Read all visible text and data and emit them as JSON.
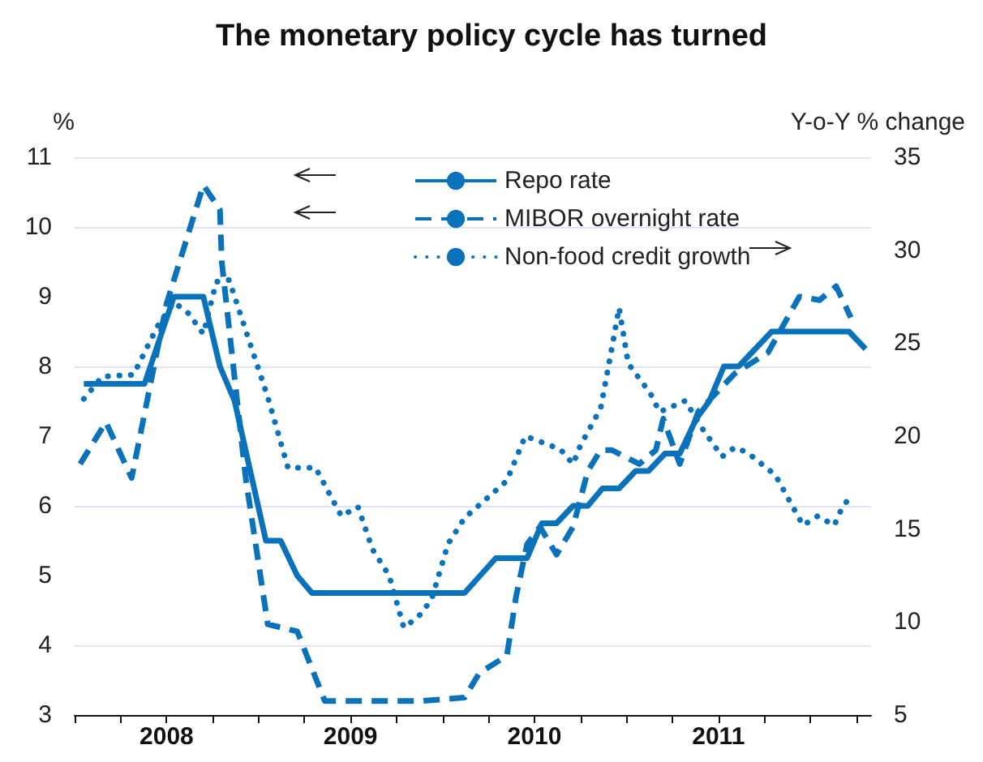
{
  "chart_data": {
    "type": "line",
    "title": "The monetary policy cycle has turned",
    "ylabel": "%",
    "y2label": "Y-o-Y % change",
    "xlim": [
      2008,
      2012.33
    ],
    "xticks": [
      {
        "value": 2008,
        "label": null
      },
      {
        "value": 2008.25,
        "label": null
      },
      {
        "value": 2008.5,
        "label": "2008"
      },
      {
        "value": 2008.75,
        "label": null
      },
      {
        "value": 2009,
        "label": null
      },
      {
        "value": 2009.25,
        "label": null
      },
      {
        "value": 2009.5,
        "label": "2009"
      },
      {
        "value": 2009.75,
        "label": null
      },
      {
        "value": 2010,
        "label": null
      },
      {
        "value": 2010.25,
        "label": null
      },
      {
        "value": 2010.5,
        "label": "2010"
      },
      {
        "value": 2010.75,
        "label": null
      },
      {
        "value": 2011,
        "label": null
      },
      {
        "value": 2011.25,
        "label": null
      },
      {
        "value": 2011.5,
        "label": "2011"
      },
      {
        "value": 2011.75,
        "label": null
      },
      {
        "value": 2012,
        "label": null
      },
      {
        "value": 2012.25,
        "label": null
      }
    ],
    "ylim": [
      3,
      11
    ],
    "yticks": [
      3,
      4,
      5,
      6,
      7,
      8,
      9,
      10,
      11
    ],
    "y2lim": [
      5,
      35
    ],
    "y2ticks": [
      5,
      10,
      15,
      20,
      25,
      30,
      35
    ],
    "grid": "y",
    "legend": "top",
    "marker": "none",
    "series": [
      {
        "name": "Repo rate",
        "color": "#0a72ba",
        "line_style": "solid",
        "x": [
          2008.05,
          2008.38,
          2008.54,
          2008.7,
          2008.79,
          2008.87,
          2009.04,
          2009.12,
          2009.21,
          2009.29,
          2010.12,
          2010.29,
          2010.46,
          2010.54,
          2010.62,
          2010.71,
          2010.79,
          2010.87,
          2010.96,
          2011.05,
          2011.12,
          2011.21,
          2011.29,
          2011.38,
          2011.45,
          2011.53,
          2011.61,
          2011.79,
          2012.21,
          2012.3
        ],
        "values": [
          7.75,
          7.75,
          9,
          9,
          8,
          7.5,
          5.5,
          5.5,
          5,
          4.75,
          4.75,
          5.25,
          5.25,
          5.75,
          5.75,
          6,
          6,
          6.25,
          6.25,
          6.5,
          6.5,
          6.75,
          6.75,
          7.25,
          7.5,
          8,
          8,
          8.5,
          8.5,
          8.25
        ]
      },
      {
        "name": "MIBOR overnight rate",
        "color": "#0a72ba",
        "line_style": "dashed",
        "x": [
          2008.03,
          2008.17,
          2008.31,
          2008.5,
          2008.7,
          2008.79,
          2008.8,
          2008.93,
          2009.05,
          2009.21,
          2009.36,
          2009.51,
          2009.88,
          2010.12,
          2010.2,
          2010.35,
          2010.4,
          2010.46,
          2010.53,
          2010.62,
          2010.71,
          2010.79,
          2010.86,
          2010.92,
          2011.07,
          2011.16,
          2011.2,
          2011.29,
          2011.39,
          2011.59,
          2011.77,
          2011.94,
          2012.05,
          2012.14,
          2012.22
        ],
        "values": [
          6.6,
          7.2,
          6.4,
          8.9,
          10.6,
          10.25,
          9.5,
          6.4,
          4.3,
          4.2,
          3.2,
          3.2,
          3.2,
          3.25,
          3.6,
          3.85,
          4.7,
          5.45,
          5.7,
          5.3,
          5.7,
          6.5,
          6.8,
          6.8,
          6.6,
          6.8,
          7.25,
          6.6,
          7.35,
          7.9,
          8.2,
          9,
          8.95,
          9.15,
          8.7
        ]
      },
      {
        "name": "Non-food credit growth",
        "color": "#0a72ba",
        "line_style": "dotted",
        "axis": "y2",
        "x": [
          2008.05,
          2008.15,
          2008.32,
          2008.45,
          2008.54,
          2008.62,
          2008.7,
          2008.77,
          2008.84,
          2008.93,
          2009.05,
          2009.16,
          2009.31,
          2009.45,
          2009.54,
          2009.62,
          2009.71,
          2009.79,
          2009.87,
          2009.94,
          2010.03,
          2010.12,
          2010.27,
          2010.35,
          2010.45,
          2010.64,
          2010.71,
          2010.75,
          2010.86,
          2010.92,
          2010.96,
          2011.01,
          2011.13,
          2011.18,
          2011.32,
          2011.42,
          2011.52,
          2011.59,
          2011.66,
          2011.81,
          2011.91,
          2011.96,
          2012.04,
          2012.13,
          2012.17,
          2012.22
        ],
        "values": [
          22,
          23.2,
          23.3,
          25.9,
          27.2,
          26.6,
          25.5,
          28.3,
          28.4,
          25.7,
          22.1,
          18.3,
          18.3,
          15.7,
          16.2,
          13.9,
          12.5,
          9.7,
          10.3,
          11.2,
          14.2,
          15.6,
          16.9,
          17.6,
          20,
          19.3,
          18.5,
          19.5,
          21.5,
          24.7,
          26.9,
          23.9,
          22.3,
          21.3,
          21.9,
          20.3,
          18.9,
          19.4,
          19.1,
          17.9,
          16.1,
          15.2,
          15.7,
          15.2,
          16.1,
          16.8
        ]
      }
    ]
  }
}
